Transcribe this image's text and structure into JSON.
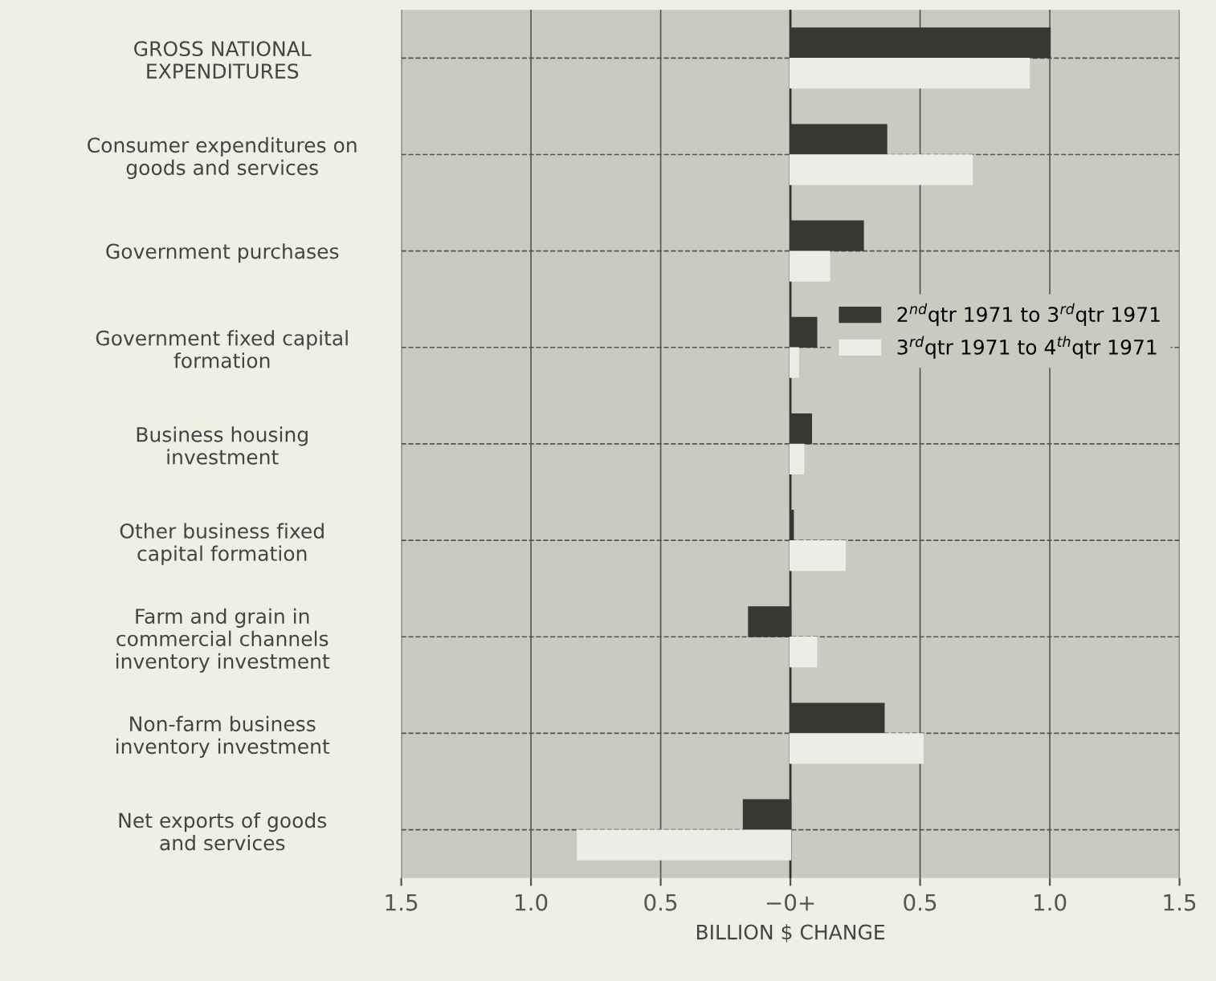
{
  "chart_data": {
    "type": "bar",
    "orientation": "horizontal",
    "xlabel": "BILLION $ CHANGE",
    "categories": [
      "GROSS NATIONAL\nEXPENDITURES",
      "Consumer expenditures on\ngoods and services",
      "Government purchases",
      "Government fixed capital\nformation",
      "Business housing\ninvestment",
      "Other business fixed\ncapital formation",
      "Farm and grain in\ncommercial channels\ninventory investment",
      "Non-farm business\ninventory investment",
      "Net exports of goods\nand services"
    ],
    "series": [
      {
        "name": "2$^{nd}$qtr 1971 to 3$^{rd}$qtr 1971",
        "color": "#363833",
        "values": [
          1.0,
          0.37,
          0.28,
          0.1,
          0.08,
          0.01,
          -0.16,
          0.36,
          -0.18
        ]
      },
      {
        "name": "3$^{rd}$qtr 1971 to 4$^{th}$qtr 1971",
        "color": "#ecede6",
        "values": [
          0.92,
          0.7,
          0.15,
          0.03,
          0.05,
          0.21,
          0.1,
          0.51,
          -0.82
        ]
      }
    ],
    "xlim": [
      -1.5,
      1.5
    ],
    "xticks": [
      {
        "value": -1.5,
        "label": "1.5"
      },
      {
        "value": -1.0,
        "label": "1.0"
      },
      {
        "value": -0.5,
        "label": "0.5"
      },
      {
        "value": 0,
        "label": "−0+"
      },
      {
        "value": 0.5,
        "label": "0.5"
      },
      {
        "value": 1.0,
        "label": "1.0"
      },
      {
        "value": 1.5,
        "label": "1.5"
      }
    ],
    "grid": true,
    "legend": "right"
  }
}
